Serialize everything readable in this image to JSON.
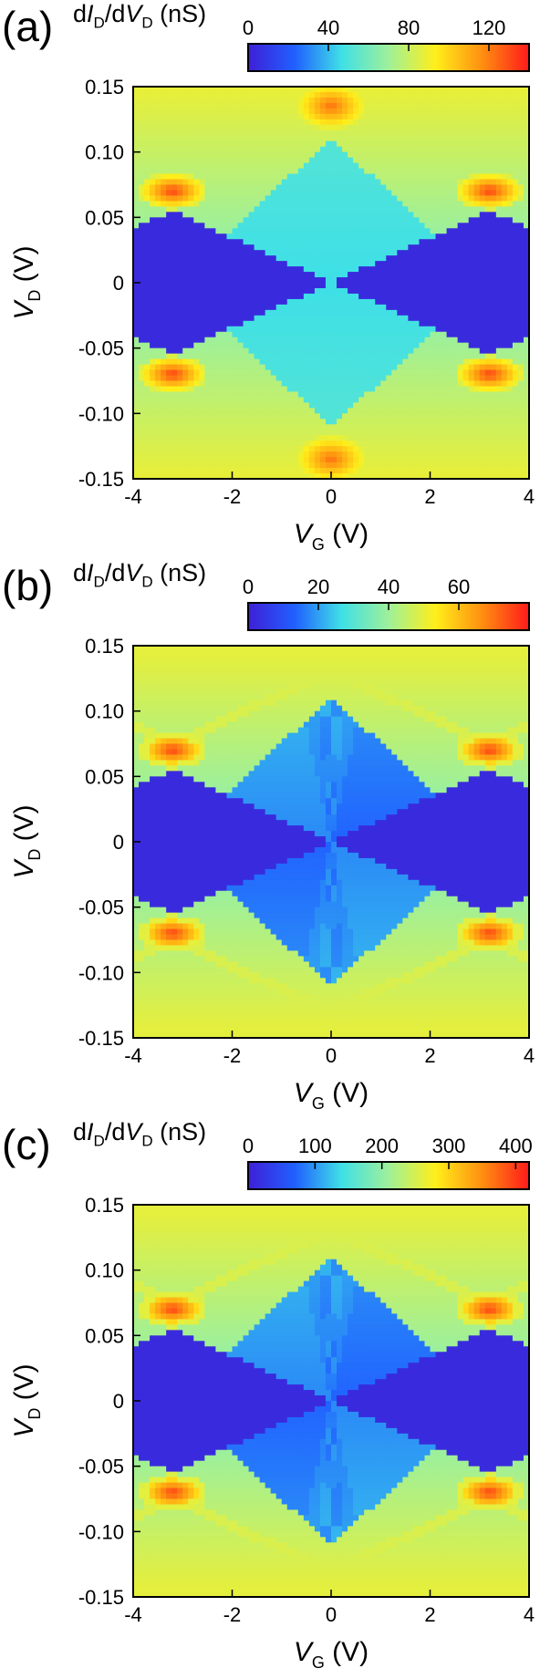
{
  "chart_data": [
    {
      "type": "heatmap",
      "panel_label": "(a)",
      "colorbar": {
        "label": "dI_D/dV_D (nS)",
        "range": [
          0,
          140
        ],
        "ticks": [
          0,
          40,
          80,
          120
        ],
        "colors": [
          "#3f1fd6",
          "#2060ff",
          "#3fe0e6",
          "#9ef09a",
          "#ffef1a",
          "#ff8f10",
          "#ff1a1a"
        ]
      },
      "x": {
        "label": "V_G (V)",
        "range": [
          -4,
          4
        ],
        "ticks": [
          -4,
          -2,
          0,
          2,
          4
        ]
      },
      "y": {
        "label": "V_D (V)",
        "range": [
          -0.15,
          0.15
        ],
        "ticks": [
          0.15,
          0.1,
          0.05,
          0,
          -0.05,
          -0.1,
          -0.15
        ]
      },
      "features": {
        "blockade_diamond_half_height_V": 0.055,
        "blockade_diamond_edge_VG": 3.2,
        "outer_diamond_half_height_V": 0.11,
        "inner_diamond_style": "flat",
        "excited_state_lines": false
      }
    },
    {
      "type": "heatmap",
      "panel_label": "(b)",
      "colorbar": {
        "label": "dI_D/dV_D (nS)",
        "range": [
          0,
          80
        ],
        "ticks": [
          0,
          20,
          40,
          60
        ],
        "colors": [
          "#3f1fd6",
          "#2060ff",
          "#3fe0e6",
          "#9ef09a",
          "#ffef1a",
          "#ff8f10",
          "#ff1a1a"
        ]
      },
      "x": {
        "label": "V_G (V)",
        "range": [
          -4,
          4
        ],
        "ticks": [
          -4,
          -2,
          0,
          2,
          4
        ]
      },
      "y": {
        "label": "V_D (V)",
        "range": [
          -0.15,
          0.15
        ],
        "ticks": [
          0.15,
          0.1,
          0.05,
          0,
          -0.05,
          -0.1,
          -0.15
        ]
      },
      "features": {
        "blockade_diamond_half_height_V": 0.055,
        "blockade_diamond_edge_VG": 3.2,
        "outer_diamond_half_height_V": 0.11,
        "inner_diamond_style": "fan",
        "excited_state_lines": true
      }
    },
    {
      "type": "heatmap",
      "panel_label": "(c)",
      "colorbar": {
        "label": "dI_D/dV_D (nS)",
        "range": [
          0,
          420
        ],
        "ticks": [
          0,
          100,
          200,
          300,
          400
        ],
        "colors": [
          "#3f1fd6",
          "#2060ff",
          "#3fe0e6",
          "#9ef09a",
          "#ffef1a",
          "#ff8f10",
          "#ff1a1a"
        ]
      },
      "x": {
        "label": "V_G (V)",
        "range": [
          -4,
          4
        ],
        "ticks": [
          -4,
          -2,
          0,
          2,
          4
        ]
      },
      "y": {
        "label": "V_D (V)",
        "range": [
          -0.15,
          0.15
        ],
        "ticks": [
          0.15,
          0.1,
          0.05,
          0,
          -0.05,
          -0.1,
          -0.15
        ]
      },
      "features": {
        "blockade_diamond_half_height_V": 0.055,
        "blockade_diamond_edge_VG": 3.2,
        "outer_diamond_half_height_V": 0.11,
        "inner_diamond_style": "fan",
        "excited_state_lines": true
      }
    }
  ]
}
